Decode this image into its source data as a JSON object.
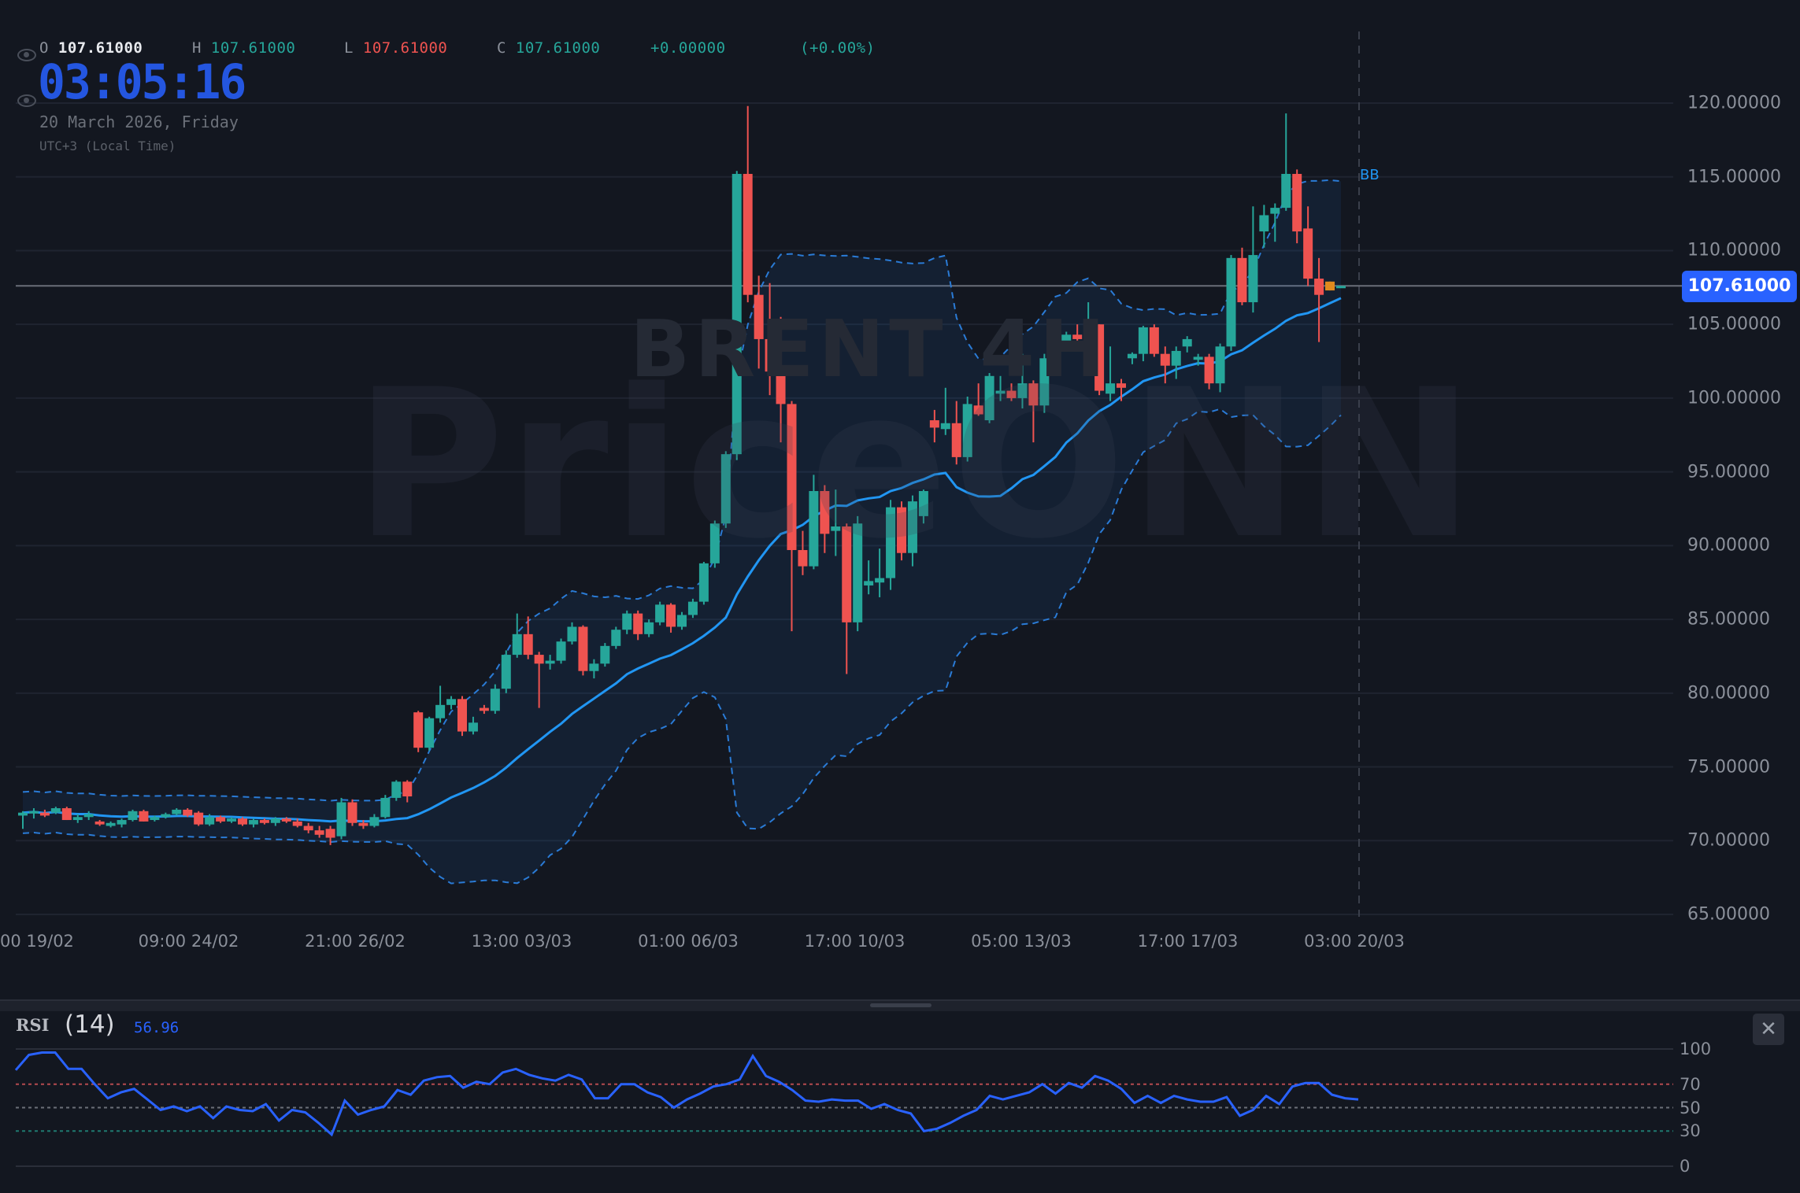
{
  "header": {
    "ohlc": {
      "o_label": "O",
      "o_value": "107.61000",
      "h_label": "H",
      "h_value": "107.61000",
      "l_label": "L",
      "l_value": "107.61000",
      "c_label": "C",
      "c_value": "107.61000",
      "change": "+0.00000",
      "change_pct": "(+0.00%)"
    },
    "clock": "03:05:16",
    "date": "20 March 2026, Friday",
    "timezone": "UTC+3 (Local Time)",
    "icons": [
      "eye-icon",
      "eye-icon"
    ]
  },
  "watermark": {
    "symbol": "BRENT 4H",
    "brand": "PriceONN"
  },
  "colors": {
    "background": "#131720",
    "up": "#26a69a",
    "down": "#ef5350",
    "ma": "#2196f3",
    "band": "#2a7bd6",
    "current_candle": "#e08a1e",
    "price_tag": "#2962ff",
    "rsi": "#2962ff",
    "rsi_70": "#b54a4f",
    "rsi_50": "#6b6f78",
    "rsi_30": "#1f7a70"
  },
  "chart_data": [
    {
      "type": "candlestick",
      "title": "BRENT 4H",
      "indicator": "BB",
      "current_price": 107.61,
      "current_price_label": "107.61000",
      "ylim": [
        65,
        120
      ],
      "yticks": [
        "120.00000",
        "115.00000",
        "110.00000",
        "105.00000",
        "100.00000",
        "95.00000",
        "90.00000",
        "85.00000",
        "80.00000",
        "75.00000",
        "70.00000",
        "65.00000"
      ],
      "ytick_values": [
        120,
        115,
        110,
        105,
        100,
        95,
        90,
        85,
        80,
        75,
        70,
        65
      ],
      "xticks": [
        "00 19/02",
        "09:00 24/02",
        "21:00 26/02",
        "13:00 03/03",
        "01:00 06/03",
        "17:00 10/03",
        "05:00 13/03",
        "17:00 17/03",
        "03:00 20/03"
      ],
      "grid": true,
      "candles_ohlc": [
        [
          71.7,
          72.0,
          70.8,
          71.9
        ],
        [
          71.9,
          72.2,
          71.5,
          72.0
        ],
        [
          71.9,
          72.1,
          71.6,
          71.7
        ],
        [
          71.9,
          72.3,
          71.8,
          72.2
        ],
        [
          72.2,
          72.3,
          71.4,
          71.4
        ],
        [
          71.4,
          71.8,
          71.2,
          71.6
        ],
        [
          71.6,
          72.0,
          71.4,
          71.8
        ],
        [
          71.3,
          71.4,
          71.0,
          71.1
        ],
        [
          71.0,
          71.3,
          70.9,
          71.2
        ],
        [
          71.1,
          71.5,
          70.9,
          71.4
        ],
        [
          71.4,
          72.1,
          71.3,
          72.0
        ],
        [
          72.0,
          72.1,
          71.3,
          71.3
        ],
        [
          71.4,
          71.7,
          71.3,
          71.6
        ],
        [
          71.6,
          71.9,
          71.5,
          71.8
        ],
        [
          71.8,
          72.2,
          71.7,
          72.1
        ],
        [
          72.1,
          72.2,
          71.6,
          71.7
        ],
        [
          71.9,
          72.0,
          71.0,
          71.1
        ],
        [
          71.1,
          71.8,
          71.0,
          71.6
        ],
        [
          71.6,
          71.7,
          71.2,
          71.3
        ],
        [
          71.3,
          71.6,
          71.2,
          71.5
        ],
        [
          71.5,
          71.6,
          71.0,
          71.1
        ],
        [
          71.1,
          71.5,
          70.9,
          71.4
        ],
        [
          71.4,
          71.5,
          71.1,
          71.2
        ],
        [
          71.2,
          71.6,
          71.0,
          71.5
        ],
        [
          71.5,
          71.6,
          71.2,
          71.3
        ],
        [
          71.3,
          71.5,
          70.9,
          71.0
        ],
        [
          71.0,
          71.2,
          70.5,
          70.7
        ],
        [
          70.7,
          71.0,
          70.2,
          70.4
        ],
        [
          70.8,
          71.0,
          69.7,
          70.2
        ],
        [
          70.3,
          72.9,
          70.1,
          72.6
        ],
        [
          72.6,
          72.8,
          71.0,
          71.2
        ],
        [
          71.2,
          71.4,
          70.8,
          71.0
        ],
        [
          71.0,
          71.8,
          70.9,
          71.6
        ],
        [
          71.6,
          73.1,
          71.5,
          72.9
        ],
        [
          72.9,
          74.1,
          72.7,
          74.0
        ],
        [
          74.0,
          74.1,
          72.6,
          73.0
        ],
        [
          78.7,
          78.8,
          76.0,
          76.3
        ],
        [
          76.3,
          78.4,
          76.1,
          78.3
        ],
        [
          78.3,
          80.5,
          78.0,
          79.2
        ],
        [
          79.2,
          79.8,
          78.9,
          79.6
        ],
        [
          79.6,
          79.8,
          77.1,
          77.4
        ],
        [
          77.4,
          78.4,
          77.2,
          78.0
        ],
        [
          79.0,
          79.2,
          78.6,
          78.8
        ],
        [
          78.8,
          80.6,
          78.6,
          80.3
        ],
        [
          80.3,
          82.9,
          80.0,
          82.6
        ],
        [
          82.6,
          85.4,
          82.4,
          84.0
        ],
        [
          84.0,
          85.2,
          82.3,
          82.6
        ],
        [
          82.6,
          82.8,
          79.0,
          82.0
        ],
        [
          82.0,
          82.6,
          81.6,
          82.2
        ],
        [
          82.2,
          83.7,
          82.0,
          83.5
        ],
        [
          83.5,
          84.8,
          83.3,
          84.5
        ],
        [
          84.5,
          84.6,
          81.2,
          81.5
        ],
        [
          81.5,
          82.3,
          81.0,
          82.0
        ],
        [
          82.0,
          83.4,
          81.8,
          83.2
        ],
        [
          83.2,
          84.5,
          83.0,
          84.3
        ],
        [
          84.3,
          85.6,
          84.0,
          85.4
        ],
        [
          85.4,
          85.6,
          83.6,
          84.0
        ],
        [
          84.0,
          85.0,
          83.8,
          84.8
        ],
        [
          84.8,
          86.2,
          84.6,
          86.0
        ],
        [
          86.0,
          86.1,
          84.1,
          84.5
        ],
        [
          84.5,
          85.5,
          84.3,
          85.3
        ],
        [
          85.3,
          86.4,
          85.1,
          86.2
        ],
        [
          86.2,
          88.9,
          86.0,
          88.8
        ],
        [
          88.8,
          91.7,
          88.5,
          91.5
        ],
        [
          91.5,
          96.4,
          91.2,
          96.2
        ],
        [
          96.2,
          115.4,
          95.8,
          115.2
        ],
        [
          115.2,
          119.8,
          106.5,
          107.0
        ],
        [
          107.0,
          108.3,
          102.0,
          104.0
        ],
        [
          104.0,
          107.8,
          100.2,
          101.8
        ],
        [
          101.8,
          105.5,
          97.0,
          99.6
        ],
        [
          99.6,
          99.8,
          84.2,
          89.7
        ],
        [
          89.7,
          91.0,
          88.0,
          88.6
        ],
        [
          88.6,
          94.8,
          88.4,
          93.7
        ],
        [
          93.7,
          94.1,
          89.5,
          90.8
        ],
        [
          91.0,
          93.8,
          89.3,
          91.3
        ],
        [
          91.3,
          91.5,
          81.3,
          84.8
        ],
        [
          84.8,
          92.0,
          84.2,
          91.5
        ],
        [
          87.3,
          89.0,
          86.7,
          87.6
        ],
        [
          87.5,
          89.8,
          86.5,
          87.8
        ],
        [
          87.8,
          93.1,
          87.0,
          92.6
        ],
        [
          92.6,
          93.0,
          89.0,
          89.5
        ],
        [
          89.5,
          93.4,
          88.6,
          93.0
        ],
        [
          92.0,
          93.8,
          91.5,
          93.7
        ],
        [
          98.5,
          99.2,
          97.0,
          98.0
        ],
        [
          97.9,
          100.7,
          97.5,
          98.3
        ],
        [
          98.3,
          99.8,
          95.5,
          96.0
        ],
        [
          96.0,
          100.1,
          95.7,
          99.6
        ],
        [
          99.5,
          101.0,
          98.8,
          98.9
        ],
        [
          98.5,
          101.7,
          98.3,
          101.5
        ],
        [
          100.3,
          101.5,
          99.8,
          100.5
        ],
        [
          100.5,
          101.0,
          99.8,
          100.0
        ],
        [
          100.0,
          103.0,
          99.3,
          101.0
        ],
        [
          101.0,
          101.2,
          97.0,
          99.5
        ],
        [
          99.5,
          103.0,
          99.0,
          102.7
        ],
        [
          102.7,
          104.0,
          101.8,
          103.7
        ],
        [
          103.7,
          104.5,
          103.3,
          104.3
        ],
        [
          104.3,
          105.0,
          103.8,
          104.0
        ],
        [
          104.0,
          106.5,
          103.6,
          105.0
        ],
        [
          105.0,
          105.0,
          100.2,
          100.5
        ],
        [
          100.3,
          103.5,
          99.8,
          101.0
        ],
        [
          101.0,
          101.3,
          99.8,
          100.7
        ],
        [
          102.7,
          103.1,
          102.3,
          103.0
        ],
        [
          103.0,
          104.9,
          102.5,
          104.8
        ],
        [
          104.8,
          105.0,
          102.8,
          103.0
        ],
        [
          103.0,
          103.5,
          101.0,
          102.2
        ],
        [
          102.2,
          103.5,
          101.3,
          103.2
        ],
        [
          103.5,
          104.2,
          103.1,
          104.0
        ],
        [
          102.6,
          103.0,
          102.2,
          102.8
        ],
        [
          102.8,
          103.0,
          100.6,
          101.0
        ],
        [
          101.0,
          103.7,
          100.4,
          103.5
        ],
        [
          103.5,
          109.7,
          103.2,
          109.5
        ],
        [
          109.5,
          110.2,
          106.3,
          106.5
        ],
        [
          106.5,
          113.0,
          105.8,
          109.7
        ],
        [
          111.3,
          113.1,
          110.2,
          112.4
        ],
        [
          112.5,
          113.2,
          110.6,
          112.9
        ],
        [
          112.9,
          119.3,
          112.7,
          115.2
        ],
        [
          115.2,
          115.5,
          110.5,
          111.3
        ],
        [
          111.5,
          113.0,
          107.6,
          108.1
        ],
        [
          108.1,
          109.5,
          103.8,
          107.0
        ],
        [
          107.3,
          107.9,
          107.3,
          107.9
        ],
        [
          107.61,
          107.61,
          107.61,
          107.61
        ]
      ]
    },
    {
      "type": "line",
      "title": "RSI",
      "period": "(14)",
      "value_label": "56.96",
      "ylim": [
        0,
        100
      ],
      "yticks": [
        "100",
        "70",
        "50",
        "30",
        "0"
      ],
      "ytick_values": [
        100,
        70,
        50,
        30,
        0
      ],
      "values": [
        82,
        95,
        97,
        97,
        83,
        83,
        70,
        58,
        63,
        66,
        57,
        48,
        51,
        47,
        51,
        41,
        51,
        48,
        47,
        53,
        39,
        48,
        46,
        37,
        27,
        56,
        44,
        48,
        51,
        65,
        61,
        73,
        76,
        77,
        67,
        72,
        70,
        80,
        83,
        78,
        75,
        73,
        78,
        74,
        58,
        58,
        70,
        70,
        63,
        59,
        50,
        57,
        62,
        68,
        70,
        74,
        94,
        77,
        72,
        65,
        56,
        55,
        57,
        56,
        56,
        49,
        53,
        48,
        45,
        30,
        32,
        37,
        43,
        48,
        60,
        57,
        60,
        63,
        70,
        62,
        71,
        67,
        77,
        73,
        66,
        54,
        60,
        54,
        60,
        57,
        55,
        55,
        59,
        43,
        48,
        60,
        53,
        68,
        71,
        71,
        61,
        58,
        56.96
      ]
    }
  ],
  "rsi_panel": {
    "name": "RSI",
    "period": "(14)",
    "value": "56.96",
    "close_label": "✕"
  }
}
